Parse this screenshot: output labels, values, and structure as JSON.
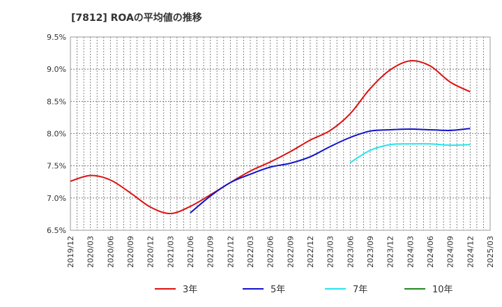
{
  "chart_data": {
    "type": "line",
    "title": "[7812]  ROAの平均値の推移",
    "xlabel": "",
    "ylabel": "",
    "ylim": [
      6.5,
      9.5
    ],
    "y_ticks": [
      "9.5%",
      "9.0%",
      "8.5%",
      "8.0%",
      "7.5%",
      "7.0%",
      "6.5%"
    ],
    "y_tick_values": [
      9.5,
      9.0,
      8.5,
      8.0,
      7.5,
      7.0,
      6.5
    ],
    "x_ticks": [
      "2019/12",
      "2020/03",
      "2020/06",
      "2020/09",
      "2020/12",
      "2021/03",
      "2021/06",
      "2021/09",
      "2021/12",
      "2022/03",
      "2022/06",
      "2022/09",
      "2022/12",
      "2023/03",
      "2023/06",
      "2023/09",
      "2023/12",
      "2024/03",
      "2024/06",
      "2024/09",
      "2024/12",
      "2025/03"
    ],
    "grid": true,
    "legend_position": "bottom",
    "series": [
      {
        "name": "3年",
        "color": "#dd1111",
        "x": [
          "2019/12",
          "2020/03",
          "2020/06",
          "2020/09",
          "2020/12",
          "2021/03",
          "2021/06",
          "2021/09",
          "2021/12",
          "2022/03",
          "2022/06",
          "2022/09",
          "2022/12",
          "2023/03",
          "2023/06",
          "2023/09",
          "2023/12",
          "2024/03",
          "2024/06",
          "2024/09",
          "2024/12"
        ],
        "values": [
          7.26,
          7.35,
          7.28,
          7.08,
          6.86,
          6.76,
          6.87,
          7.05,
          7.24,
          7.42,
          7.56,
          7.72,
          7.9,
          8.05,
          8.31,
          8.7,
          8.99,
          9.13,
          9.05,
          8.8,
          8.65
        ]
      },
      {
        "name": "5年",
        "color": "#1111cc",
        "x": [
          "2021/06",
          "2021/09",
          "2021/12",
          "2022/03",
          "2022/06",
          "2022/09",
          "2022/12",
          "2023/03",
          "2023/06",
          "2023/09",
          "2023/12",
          "2024/03",
          "2024/06",
          "2024/09",
          "2024/12"
        ],
        "values": [
          6.77,
          7.03,
          7.24,
          7.37,
          7.48,
          7.54,
          7.64,
          7.8,
          7.94,
          8.04,
          8.06,
          8.07,
          8.06,
          8.05,
          8.08
        ]
      },
      {
        "name": "7年",
        "color": "#22e5ee",
        "x": [
          "2023/06",
          "2023/09",
          "2023/12",
          "2024/03",
          "2024/06",
          "2024/09",
          "2024/12"
        ],
        "values": [
          7.55,
          7.74,
          7.83,
          7.84,
          7.84,
          7.82,
          7.83
        ]
      },
      {
        "name": "10年",
        "color": "#228822",
        "x": [],
        "values": []
      }
    ]
  }
}
